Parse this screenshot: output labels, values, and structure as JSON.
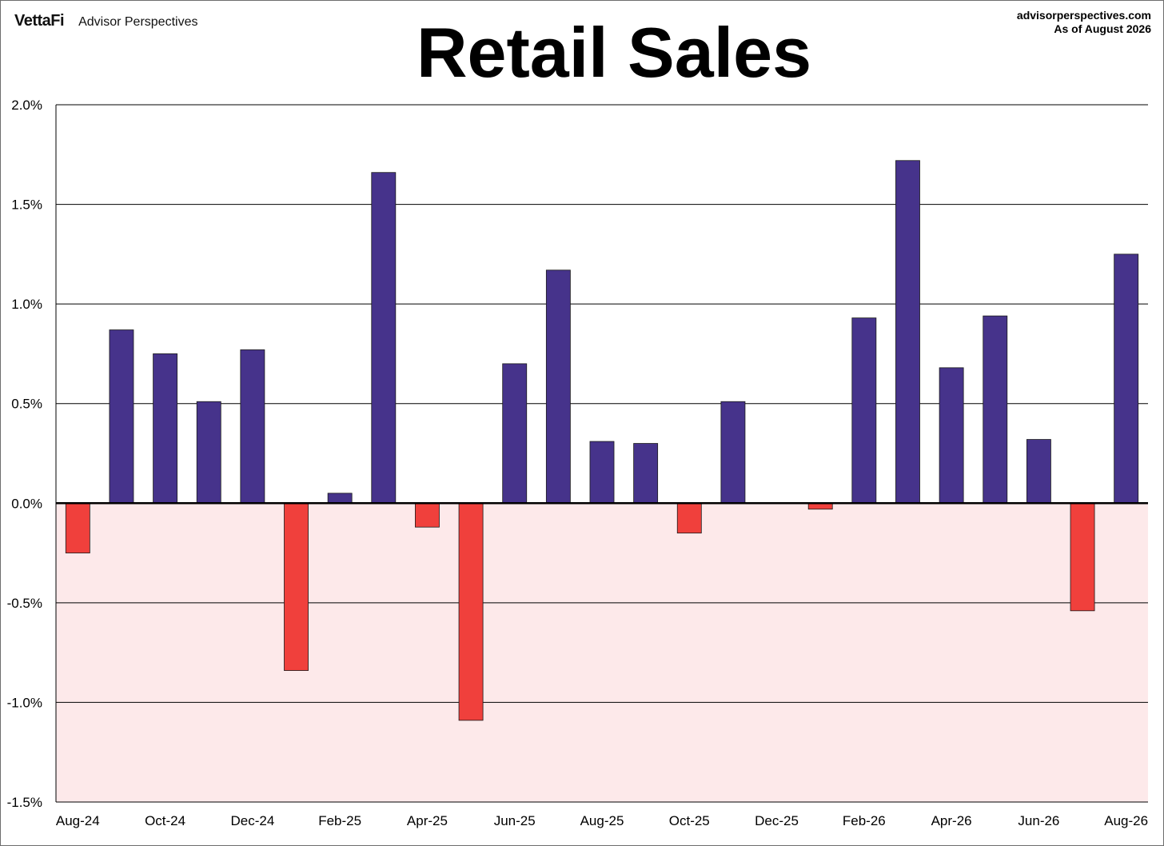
{
  "header": {
    "brand_logo": "VettaFi",
    "brand_name": "Advisor Perspectives",
    "source_site": "advisorperspectives.com",
    "source_date": "As of August 2026"
  },
  "chart_data": {
    "type": "bar",
    "title": "Retail Sales",
    "xlabel": "",
    "ylabel": "",
    "ylim": [
      -1.5,
      2.0
    ],
    "y_ticks": [
      2.0,
      1.5,
      1.0,
      0.5,
      0.0,
      -0.5,
      -1.0,
      -1.5
    ],
    "y_tick_labels": [
      "2.0%",
      "1.5%",
      "1.0%",
      "0.5%",
      "0.0%",
      "-0.5%",
      "-1.0%",
      "-1.5%"
    ],
    "categories": [
      "Aug-24",
      "Sep-24",
      "Oct-24",
      "Nov-24",
      "Dec-24",
      "Jan-25",
      "Feb-25",
      "Mar-25",
      "Apr-25",
      "May-25",
      "Jun-25",
      "Jul-25",
      "Aug-25",
      "Sep-25",
      "Oct-25",
      "Nov-25",
      "Dec-25",
      "Jan-26",
      "Feb-26",
      "Mar-26",
      "Apr-26",
      "May-26",
      "Jun-26",
      "Jul-26",
      "Aug-26"
    ],
    "x_tick_labels": [
      "Aug-24",
      "Oct-24",
      "Dec-24",
      "Feb-25",
      "Apr-25",
      "Jun-25",
      "Aug-25",
      "Oct-25",
      "Dec-25",
      "Feb-26",
      "Apr-26",
      "Jun-26",
      "Aug-26"
    ],
    "values": [
      -0.25,
      0.87,
      0.75,
      0.51,
      0.77,
      -0.84,
      0.05,
      1.66,
      -0.12,
      -1.09,
      0.7,
      1.17,
      0.31,
      0.3,
      -0.15,
      0.51,
      0.0,
      -0.03,
      0.93,
      1.72,
      0.68,
      0.94,
      0.32,
      -0.54,
      1.25
    ],
    "grid": true,
    "colors": {
      "positive": "#46338b",
      "negative": "#f0403c",
      "negative_region": "#fde9ea",
      "grid": "#000000"
    }
  }
}
